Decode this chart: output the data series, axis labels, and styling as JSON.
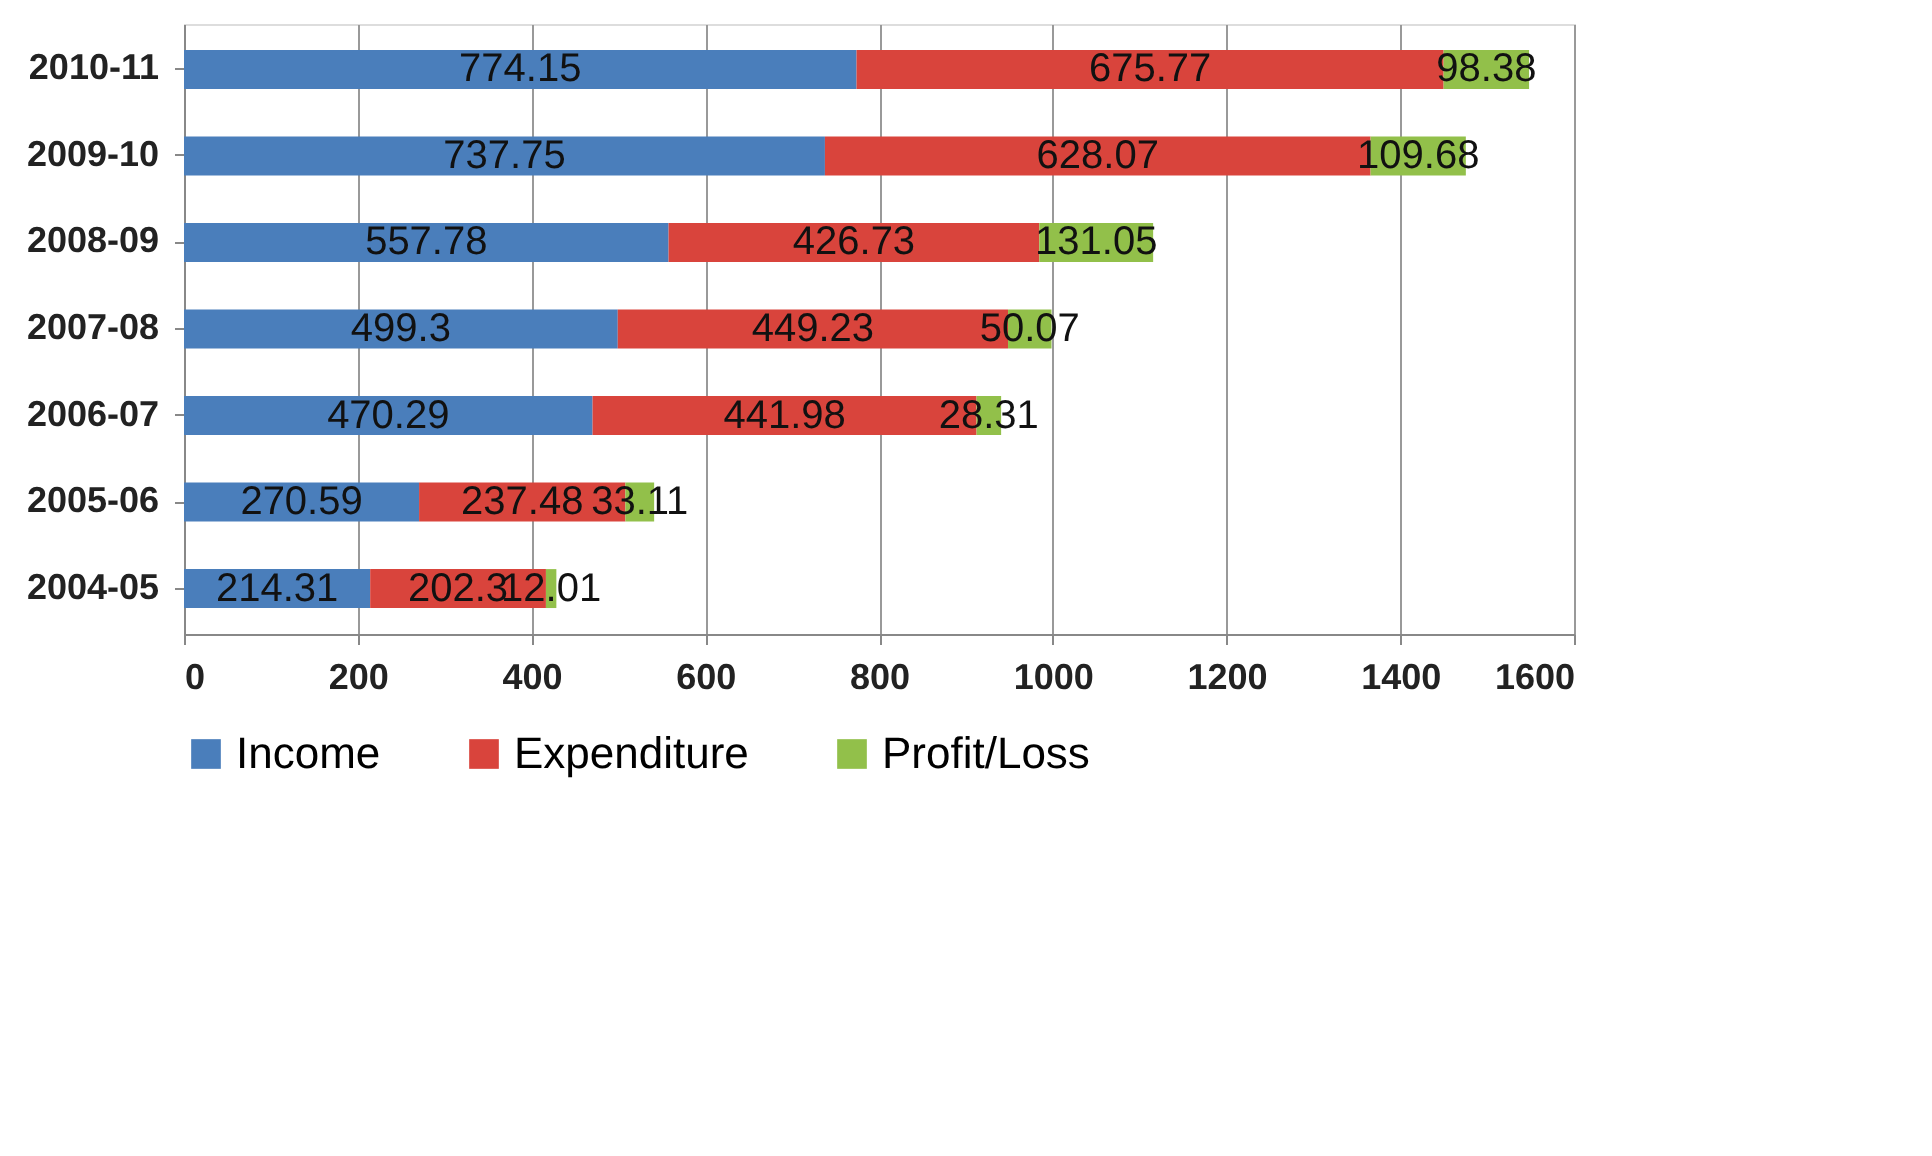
{
  "chart_data": {
    "type": "bar",
    "orientation": "horizontal",
    "stacked": true,
    "categories": [
      "2010-11",
      "2009-10",
      "2008-09",
      "2007-08",
      "2006-07",
      "2005-06",
      "2004-05"
    ],
    "series": [
      {
        "name": "Income",
        "color": "#4a7ebb",
        "values": [
          774.15,
          737.75,
          557.78,
          499.3,
          470.29,
          270.59,
          214.31
        ]
      },
      {
        "name": "Expenditure",
        "color": "#d9443c",
        "values": [
          675.77,
          628.07,
          426.73,
          449.23,
          441.98,
          237.48,
          202.3
        ]
      },
      {
        "name": "Profit/Loss",
        "color": "#92c04a",
        "values": [
          98.38,
          109.68,
          131.05,
          50.07,
          28.31,
          33.11,
          12.01
        ]
      }
    ],
    "xlim": [
      0,
      1600
    ],
    "xticks": [
      0,
      200,
      400,
      600,
      800,
      1000,
      1200,
      1400,
      1600
    ],
    "grid": "x",
    "legend": "bottom",
    "data_labels": true
  }
}
